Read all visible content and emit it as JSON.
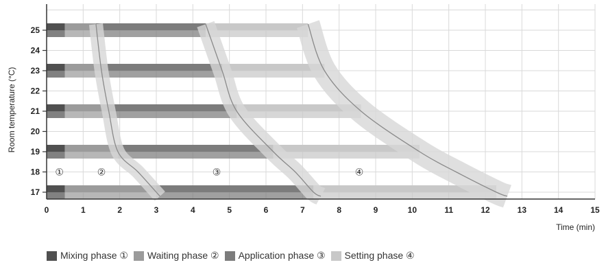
{
  "chart_data": {
    "type": "bar",
    "xlabel": "Time (min)",
    "ylabel": "Room temperature (°C)",
    "xlim": [
      0,
      15
    ],
    "ylim": [
      16.5,
      26.8
    ],
    "x_ticks": [
      "0",
      "1",
      "2",
      "3",
      "4",
      "5",
      "6",
      "7",
      "8",
      "9",
      "10",
      "11",
      "12",
      "13",
      "14",
      "15"
    ],
    "y_ticks": [
      "17",
      "18",
      "19",
      "20",
      "21",
      "22",
      "23",
      "24",
      "25"
    ],
    "grid": true,
    "legend_position": "bottom",
    "series": [
      {
        "name": "Mixing phase ①",
        "color": "#505050",
        "values": [
          {
            "temp": 17,
            "start": 0,
            "end": 0.5
          },
          {
            "temp": 19,
            "start": 0,
            "end": 0.5
          },
          {
            "temp": 21,
            "start": 0,
            "end": 0.5
          },
          {
            "temp": 23,
            "start": 0,
            "end": 0.5
          },
          {
            "temp": 25,
            "start": 0,
            "end": 0.5
          }
        ]
      },
      {
        "name": "Waiting phase ②",
        "color": "#9b9b9b",
        "values": [
          {
            "temp": 17,
            "start": 0.5,
            "end": 3.0
          },
          {
            "temp": 19,
            "start": 0.5,
            "end": 1.95
          },
          {
            "temp": 21,
            "start": 0.5,
            "end": 1.7
          },
          {
            "temp": 23,
            "start": 0.5,
            "end": 1.5
          },
          {
            "temp": 25,
            "start": 0.5,
            "end": 1.35
          }
        ]
      },
      {
        "name": "Application phase ③",
        "color": "#7c7c7c",
        "values": [
          {
            "temp": 17,
            "start": 3.0,
            "end": 7.3
          },
          {
            "temp": 19,
            "start": 1.95,
            "end": 6.2
          },
          {
            "temp": 21,
            "start": 1.7,
            "end": 5.2
          },
          {
            "temp": 23,
            "start": 1.5,
            "end": 4.8
          },
          {
            "temp": 25,
            "start": 1.35,
            "end": 4.35
          }
        ]
      },
      {
        "name": "Setting phase ④",
        "color": "#c8c8c8",
        "values": [
          {
            "temp": 17,
            "start": 7.3,
            "end": 12.3
          },
          {
            "temp": 19,
            "start": 6.2,
            "end": 10.2
          },
          {
            "temp": 21,
            "start": 5.2,
            "end": 8.6
          },
          {
            "temp": 23,
            "start": 4.8,
            "end": 7.6
          },
          {
            "temp": 25,
            "start": 4.35,
            "end": 7.15
          }
        ]
      }
    ],
    "annotations": [
      {
        "text": "①",
        "x": 0.35,
        "y": 18
      },
      {
        "text": "②",
        "x": 1.5,
        "y": 18
      },
      {
        "text": "③",
        "x": 4.65,
        "y": 18
      },
      {
        "text": "④",
        "x": 8.55,
        "y": 18
      }
    ],
    "boundary_curves": [
      {
        "points": [
          [
            1.35,
            25.3
          ],
          [
            1.5,
            23
          ],
          [
            1.7,
            21
          ],
          [
            1.95,
            19
          ],
          [
            2.5,
            18
          ],
          [
            3.0,
            17
          ],
          [
            3.1,
            16.8
          ]
        ],
        "band_width": 0.38
      },
      {
        "points": [
          [
            4.35,
            25.3
          ],
          [
            4.8,
            23
          ],
          [
            5.2,
            21
          ],
          [
            6.2,
            19
          ],
          [
            6.8,
            18
          ],
          [
            7.3,
            17
          ],
          [
            7.5,
            16.8
          ]
        ],
        "band_width": 0.5
      },
      {
        "points": [
          [
            7.15,
            25.3
          ],
          [
            7.6,
            23
          ],
          [
            8.6,
            21
          ],
          [
            10.2,
            19
          ],
          [
            11.2,
            18
          ],
          [
            12.3,
            17
          ],
          [
            12.6,
            16.8
          ]
        ],
        "band_width": 0.65
      }
    ]
  },
  "legend_items": [
    {
      "label": "Mixing phase ①",
      "color": "#505050"
    },
    {
      "label": "Waiting phase ②",
      "color": "#9b9b9b"
    },
    {
      "label": "Application phase ③",
      "color": "#7c7c7c"
    },
    {
      "label": "Setting phase ④",
      "color": "#c8c8c8"
    }
  ]
}
